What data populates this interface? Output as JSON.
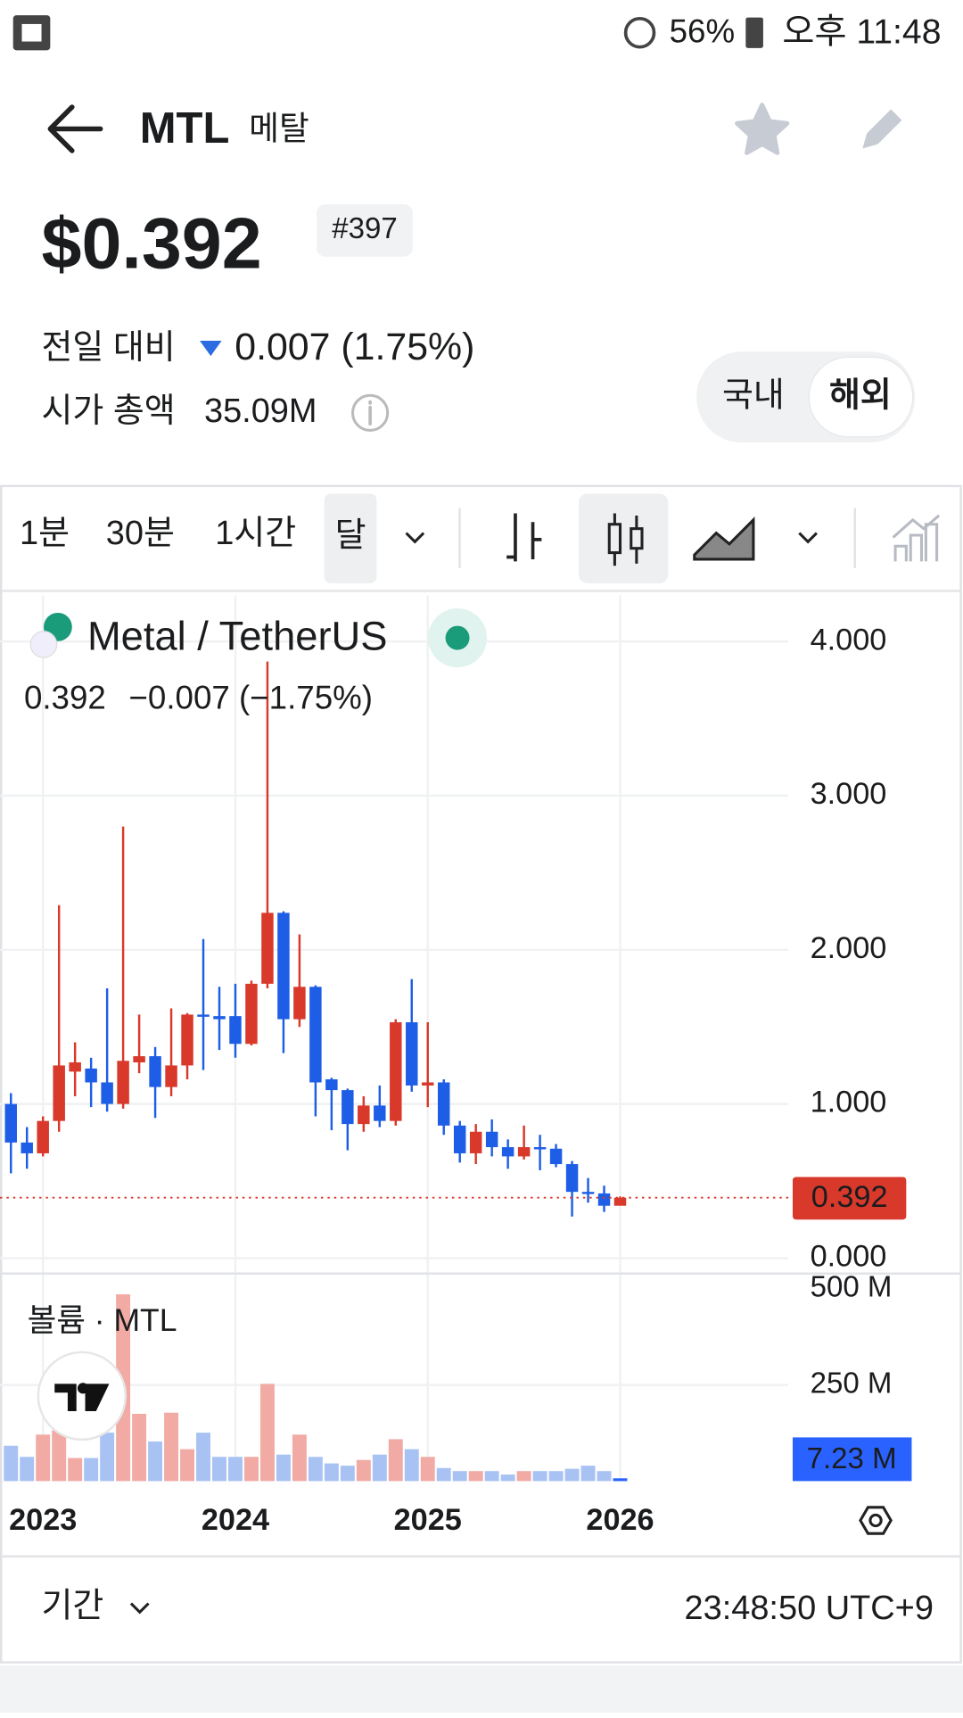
{
  "status_bar": {
    "battery": "56%",
    "time": "오후 11:48"
  },
  "header": {
    "symbol": "MTL",
    "name": "메탈"
  },
  "price": {
    "value": "$0.392",
    "rank": "#397",
    "change_label": "전일 대비",
    "change": "0.007 (1.75%)",
    "market_cap_label": "시가 총액",
    "market_cap": "35.09M"
  },
  "market_toggle": [
    "국내",
    "해외"
  ],
  "toolbar": {
    "intervals": [
      "1분",
      "30분",
      "1시간",
      "달"
    ]
  },
  "chart_data": {
    "type": "candlestick",
    "title": "Metal / TetherUS",
    "legend_values": [
      "0.392",
      "−0.007 (−1.75%)"
    ],
    "categories": [
      null,
      null,
      "2023",
      null,
      null,
      null,
      null,
      null,
      null,
      null,
      null,
      null,
      null,
      null,
      "2024",
      null,
      null,
      null,
      null,
      null,
      null,
      null,
      null,
      null,
      null,
      null,
      "2025",
      null,
      null,
      null,
      null,
      null,
      null,
      null,
      null,
      null,
      null,
      null,
      "2026"
    ],
    "open": [
      1.0,
      0.75,
      0.68,
      0.89,
      1.21,
      1.23,
      1.14,
      1.0,
      1.27,
      1.31,
      1.11,
      1.25,
      1.58,
      1.57,
      1.57,
      1.39,
      1.78,
      2.24,
      1.55,
      1.76,
      1.16,
      1.09,
      0.87,
      0.99,
      0.89,
      1.53,
      1.12,
      1.14,
      0.86,
      0.68,
      0.82,
      0.72,
      0.66,
      0.72,
      0.71,
      0.61,
      0.43,
      0.42,
      0.34
    ],
    "high": [
      1.07,
      0.85,
      0.92,
      2.29,
      1.4,
      1.3,
      1.75,
      2.8,
      1.58,
      1.37,
      1.62,
      1.59,
      2.07,
      1.76,
      1.78,
      1.8,
      3.87,
      2.25,
      2.1,
      1.77,
      1.17,
      1.1,
      1.05,
      1.12,
      1.55,
      1.81,
      1.53,
      1.16,
      0.89,
      0.87,
      0.9,
      0.77,
      0.86,
      0.8,
      0.74,
      0.63,
      0.52,
      0.47,
      0.4
    ],
    "low": [
      0.55,
      0.58,
      0.66,
      0.82,
      1.05,
      0.98,
      0.95,
      0.97,
      1.2,
      0.91,
      1.05,
      1.16,
      1.22,
      1.35,
      1.3,
      1.38,
      1.75,
      1.33,
      1.5,
      0.92,
      0.83,
      0.7,
      0.82,
      0.85,
      0.86,
      1.08,
      0.98,
      0.8,
      0.62,
      0.61,
      0.66,
      0.58,
      0.64,
      0.57,
      0.59,
      0.27,
      0.36,
      0.3,
      0.36
    ],
    "close": [
      0.75,
      0.68,
      0.89,
      1.25,
      1.27,
      1.14,
      1.0,
      1.28,
      1.31,
      1.11,
      1.25,
      1.58,
      1.57,
      1.55,
      1.39,
      1.78,
      2.24,
      1.55,
      1.76,
      1.14,
      1.09,
      0.87,
      0.99,
      0.89,
      1.53,
      1.12,
      1.14,
      0.86,
      0.68,
      0.82,
      0.72,
      0.66,
      0.72,
      0.71,
      0.61,
      0.43,
      0.42,
      0.34,
      0.392
    ],
    "up_color": "#d8392b",
    "down_color": "#1e5ee6",
    "ylim": [
      -0.1,
      4.3
    ],
    "yticks": [
      {
        "value": 4,
        "label": "4.000"
      },
      {
        "value": 3,
        "label": "3.000"
      },
      {
        "value": 2,
        "label": "2.000"
      },
      {
        "value": 1,
        "label": "1.000"
      },
      {
        "value": 0,
        "label": "0.000"
      }
    ],
    "grid": true,
    "volume": {
      "title": "볼륨 · MTL",
      "values": [
        92,
        63,
        121,
        132,
        60,
        60,
        126,
        486,
        175,
        103,
        178,
        83,
        126,
        63,
        63,
        63,
        253,
        69,
        121,
        63,
        46,
        40,
        55,
        69,
        109,
        83,
        63,
        34,
        26,
        26,
        26,
        17,
        26,
        26,
        26,
        32,
        40,
        26,
        7.23
      ],
      "last_label": "7.23 M",
      "up_color": "#f2aaa5",
      "down_color": "#a8c2f4",
      "last_color": "#2962ff",
      "ylim": [
        0,
        540
      ],
      "yticks": [
        {
          "value": 500,
          "label": "500 M"
        },
        {
          "value": 250,
          "label": "250 M"
        }
      ]
    }
  },
  "footer": {
    "period": "기간",
    "time": "23:48:50 UTC+9"
  }
}
